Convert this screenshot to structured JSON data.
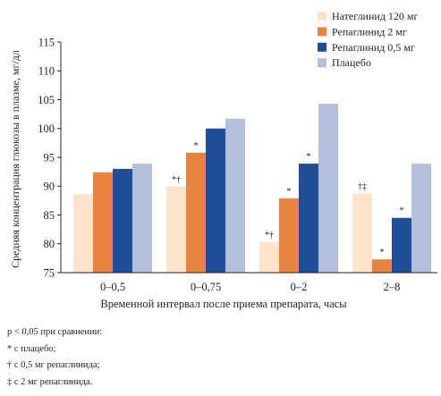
{
  "chart_data": {
    "type": "bar",
    "xlabel": "Временной интервал после приема препарата, часы",
    "ylabel": "Средняя концентрация глюкозы в плазме, мг/дл",
    "categories": [
      "0–0,5",
      "0–0,75",
      "0–2",
      "2–8"
    ],
    "ylim": [
      75,
      115
    ],
    "yticks": [
      75,
      80,
      85,
      90,
      95,
      100,
      105,
      110,
      115
    ],
    "grid": false,
    "legend": "top-right",
    "series": [
      {
        "name": "Натеглинид 120 мг",
        "color": "#fde3cb",
        "values": [
          88.6,
          89.9,
          80.3,
          88.7
        ],
        "markers": [
          null,
          "*†",
          "*†",
          "†‡"
        ]
      },
      {
        "name": "Репаглинид 2 мг",
        "color": "#e8843d",
        "values": [
          92.4,
          95.8,
          87.9,
          77.3
        ],
        "markers": [
          null,
          "*",
          "*",
          "*"
        ]
      },
      {
        "name": "Репаглинид 0,5 мг",
        "color": "#1f4d97",
        "values": [
          93.0,
          100.0,
          93.9,
          84.5
        ],
        "markers": [
          null,
          null,
          "*",
          "*"
        ]
      },
      {
        "name": "Плацебо",
        "color": "#b3bfdb",
        "values": [
          93.9,
          101.7,
          104.3,
          93.9
        ],
        "markers": [
          null,
          null,
          null,
          null
        ]
      }
    ]
  },
  "footnotes": {
    "heading": "p < 0,05 при сравнении:",
    "items": [
      "* с плацебо;",
      "† с 0,5 мг репаглинида;",
      "‡ с 2 мг репаглинида."
    ]
  },
  "colors": {
    "text": "#231f20",
    "axis": "#231f20"
  }
}
